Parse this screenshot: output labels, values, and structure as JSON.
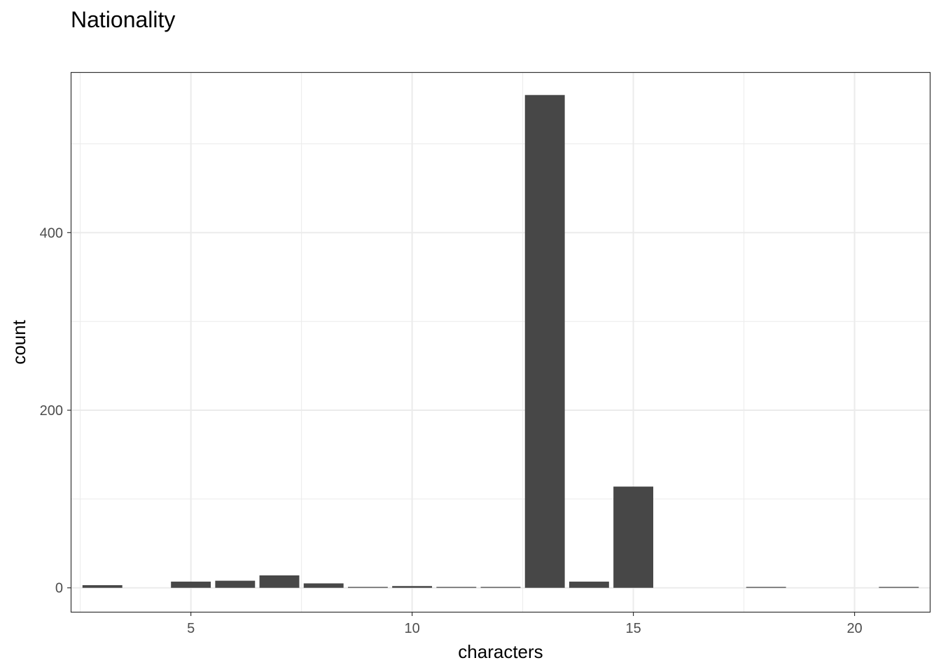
{
  "chart_data": {
    "type": "bar",
    "title": "Nationality",
    "xlabel": "characters",
    "ylabel": "count",
    "x": [
      3,
      4,
      5,
      6,
      7,
      8,
      9,
      10,
      11,
      12,
      13,
      14,
      15,
      16,
      17,
      18,
      19,
      20,
      21
    ],
    "values": [
      3,
      0,
      7,
      8,
      14,
      5,
      1,
      2,
      1,
      1,
      555,
      7,
      114,
      0,
      0,
      1,
      0,
      0,
      1
    ],
    "xlim": [
      2.3,
      21.7
    ],
    "ylim": [
      -27,
      580
    ],
    "xticks": [
      5,
      10,
      15,
      20
    ],
    "yticks": [
      0,
      200,
      400
    ],
    "grid": true,
    "legend": "none",
    "bar_color": "#474747",
    "grid_color": "#ebebeb",
    "panel_border_color": "#333333"
  }
}
